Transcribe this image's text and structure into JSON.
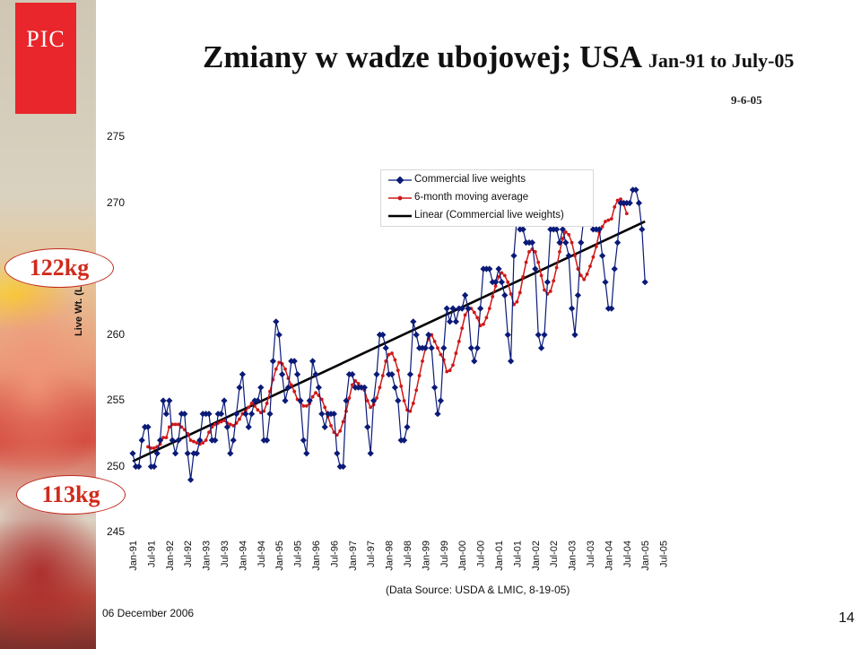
{
  "logo_text": "PIC",
  "title_main": "Zmiany w wadze ubojowej; USA",
  "title_sub": "Jan-91 to July-05",
  "date_label": "9-6-05",
  "kg_upper": "122kg",
  "kg_lower": "113kg",
  "source": "(Data Source: USDA & LMIC, 8-19-05)",
  "footer_date": "06 December 2006",
  "page_number": "14",
  "colors": {
    "series": "#0a1a78",
    "average": "#d01818",
    "trend": "#000000",
    "logo_bg": "#e8262b"
  },
  "chart_data": {
    "type": "line",
    "title": "Zmiany w wadze ubojowej; USA Jan-91 to July-05",
    "ylabel": "Live Wt. (Lbs.)",
    "xlabel": "",
    "ylim": [
      245,
      275
    ],
    "yticks": [
      245,
      250,
      255,
      260,
      265,
      270,
      275
    ],
    "ytick_labels": [
      "245",
      "250",
      "255",
      "260",
      "",
      "270",
      "275"
    ],
    "grid": false,
    "legend_position": "top-center",
    "x_tick_labels": [
      "Jan-91",
      "Jul-91",
      "Jan-92",
      "Jul-92",
      "Jan-93",
      "Jul-93",
      "Jan-94",
      "Jul-94",
      "Jan-95",
      "Jul-95",
      "Jan-96",
      "Jul-96",
      "Jan-97",
      "Jul-97",
      "Jan-98",
      "Jul-98",
      "Jan-99",
      "Jul-99",
      "Jan-00",
      "Jul-00",
      "Jan-01",
      "Jul-01",
      "Jan-02",
      "Jul-02",
      "Jan-03",
      "Jul-03",
      "Jan-04",
      "Jul-04",
      "Jan-05",
      "Jul-05"
    ],
    "x_start": "Jan-91",
    "series": [
      {
        "name": "Commercial live weights",
        "style": "line-diamond",
        "values": [
          251,
          250,
          250,
          252,
          253,
          253,
          250,
          250,
          251,
          252,
          255,
          254,
          255,
          252,
          251,
          252,
          254,
          254,
          251,
          249,
          251,
          251,
          252,
          254,
          254,
          254,
          252,
          252,
          254,
          254,
          255,
          253,
          251,
          252,
          254,
          256,
          257,
          254,
          253,
          254,
          255,
          255,
          256,
          252,
          252,
          254,
          258,
          261,
          260,
          257,
          255,
          256,
          258,
          258,
          257,
          255,
          252,
          251,
          255,
          258,
          257,
          256,
          254,
          253,
          254,
          254,
          254,
          251,
          250,
          250,
          255,
          257,
          257,
          256,
          256,
          256,
          256,
          253,
          251,
          255,
          257,
          260,
          260,
          259,
          257,
          257,
          256,
          255,
          252,
          252,
          253,
          257,
          261,
          260,
          259,
          259,
          259,
          260,
          259,
          256,
          254,
          255,
          259,
          262,
          261,
          262,
          261,
          262,
          262,
          263,
          262,
          259,
          258,
          259,
          262,
          265,
          265,
          265,
          264,
          264,
          265,
          264,
          263,
          260,
          258,
          266,
          269,
          268,
          268,
          267,
          267,
          267,
          265,
          260,
          259,
          260,
          264,
          268,
          268,
          268,
          267,
          268,
          267,
          266,
          262,
          260,
          263,
          267,
          269,
          269,
          269,
          268,
          268,
          268,
          266,
          264,
          262,
          262,
          265,
          267,
          270,
          270,
          270,
          270,
          271,
          271,
          270,
          268,
          264
        ]
      },
      {
        "name": "6-month moving average",
        "style": "line-dot",
        "values": [
          null,
          null,
          null,
          null,
          null,
          251.5,
          251.4,
          251.4,
          251.5,
          251.7,
          252.2,
          252.2,
          253.0,
          253.2,
          253.2,
          253.2,
          253.0,
          252.8,
          252.5,
          252.0,
          251.9,
          251.8,
          251.7,
          251.8,
          252.0,
          252.6,
          253.0,
          253.2,
          253.3,
          253.4,
          253.5,
          253.3,
          253.2,
          253.1,
          253.3,
          253.6,
          254.0,
          254.2,
          254.5,
          254.8,
          254.6,
          254.3,
          254.1,
          254.2,
          254.8,
          255.7,
          256.6,
          257.4,
          257.9,
          257.8,
          257.4,
          256.7,
          256.2,
          255.7,
          255.1,
          254.9,
          254.6,
          254.6,
          254.8,
          255.3,
          255.6,
          255.4,
          255.1,
          254.5,
          253.8,
          253.1,
          252.6,
          252.4,
          252.7,
          253.4,
          254.2,
          255.2,
          256.2,
          256.5,
          256.3,
          256.0,
          255.8,
          255.0,
          254.5,
          254.7,
          255.2,
          256.0,
          256.9,
          258.0,
          258.5,
          258.6,
          258.1,
          257.3,
          256.1,
          255.0,
          254.3,
          254.2,
          254.8,
          255.8,
          256.9,
          258.0,
          259.0,
          259.7,
          260.0,
          259.5,
          259.0,
          258.5,
          258.1,
          257.2,
          257.3,
          257.7,
          258.6,
          259.5,
          260.5,
          261.5,
          261.9,
          262.0,
          261.7,
          261.3,
          260.7,
          260.8,
          261.3,
          262.0,
          262.9,
          263.7,
          264.4,
          264.7,
          264.5,
          264.0,
          263.1,
          262.3,
          262.5,
          263.2,
          264.4,
          265.5,
          266.3,
          266.5,
          266.3,
          265.5,
          264.5,
          263.4,
          263.1,
          263.3,
          264.1,
          265.1,
          266.3,
          267.3,
          267.8,
          267.6,
          267.0,
          266.0,
          265.0,
          264.5,
          264.2,
          264.6,
          265.2,
          265.9,
          266.7,
          267.8,
          268.2,
          268.6,
          268.7,
          268.8,
          269.7,
          270.2,
          270.3,
          269.9,
          269.2
        ]
      },
      {
        "name": "Linear (Commercial live weights)",
        "style": "line-thick",
        "values_start_end": [
          250.4,
          268.6
        ]
      }
    ]
  }
}
